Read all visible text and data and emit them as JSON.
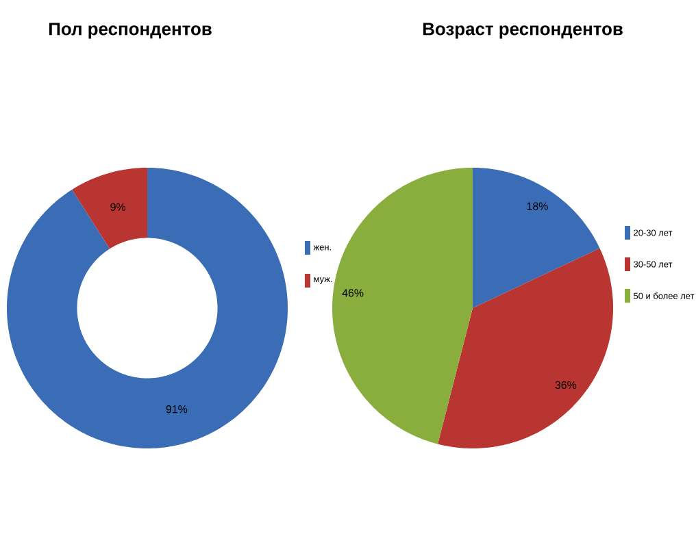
{
  "chart_data": [
    {
      "type": "donut",
      "title": "Пол респондентов",
      "categories": [
        "жен.",
        "муж."
      ],
      "values": [
        91,
        9
      ],
      "colors": [
        "#3a6db5",
        "#b83531"
      ],
      "value_labels": [
        "91%",
        "9%"
      ],
      "legend": "right"
    },
    {
      "type": "pie",
      "title": "Возраст респондентов",
      "categories": [
        "20-30 лет",
        "30-50 лет",
        "50 и более лет"
      ],
      "values": [
        18,
        36,
        46
      ],
      "colors": [
        "#3a6db5",
        "#b83531",
        "#8aae3e"
      ],
      "value_labels": [
        "18%",
        "36%",
        "46%"
      ],
      "legend": "right"
    }
  ]
}
